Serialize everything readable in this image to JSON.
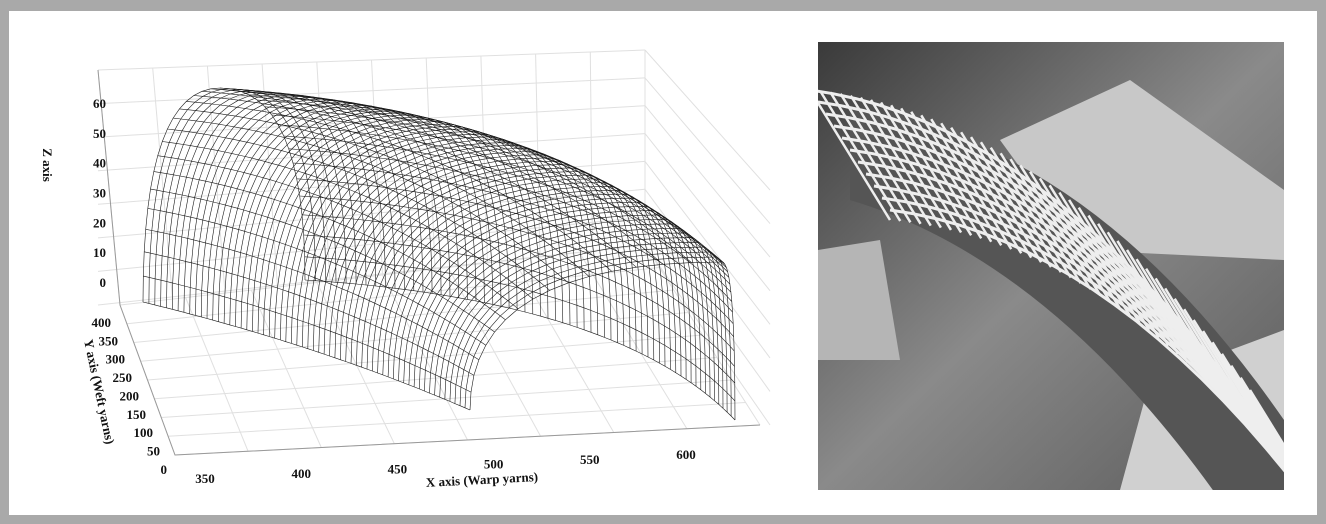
{
  "figure": {
    "plot": {
      "z_axis_label": "Z axis",
      "y_axis_label": "Y axis (Weft yarns)",
      "x_axis_label": "X axis (Warp yarns)",
      "z_ticks": [
        0,
        10,
        20,
        30,
        40,
        50,
        60
      ],
      "y_ticks": [
        0,
        50,
        100,
        150,
        200,
        250,
        300,
        350,
        400
      ],
      "x_ticks": [
        350,
        400,
        450,
        500,
        550,
        600
      ]
    }
  }
}
